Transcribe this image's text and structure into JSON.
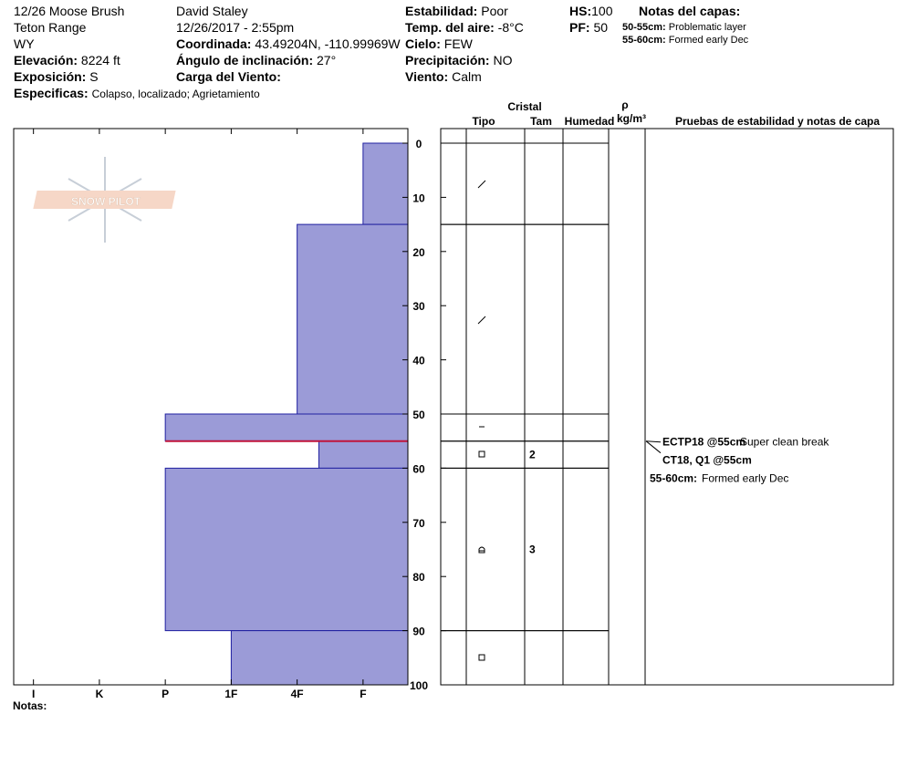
{
  "header": {
    "location": "12/26 Moose Brush",
    "range": "Teton Range",
    "state": "WY",
    "elevation_label": "Elevación:",
    "elevation": "8224 ft",
    "aspect_label": "Exposición:",
    "aspect": "S",
    "specifics_label": "Especificas:",
    "specifics": "Colapso, localizado; Agrietamiento",
    "observer": "David Staley",
    "datetime": "12/26/2017 - 2:55pm",
    "coord_label": "Coordinada:",
    "coord": "43.49204N, -110.99969W",
    "slope_label": "Ángulo de inclinación:",
    "slope": "27°",
    "wind_load_label": "Carga del Viento:",
    "stability_label": "Estabilidad:",
    "stability": "Poor",
    "air_temp_label": "Temp. del aire:",
    "air_temp": "-8°C",
    "sky_label": "Cielo:",
    "sky": "FEW",
    "precip_label": "Precipitación:",
    "precip": "NO",
    "wind_label": "Viento:",
    "wind": "Calm",
    "hs_label": "HS:",
    "hs": 100,
    "pf_label": "PF:",
    "pf": 50,
    "layer_notes_label": "Notas del capas:",
    "layer_notes": [
      {
        "range": "50-55cm:",
        "text": "Problematic layer"
      },
      {
        "range": "55-60cm:",
        "text": "Formed early Dec"
      }
    ]
  },
  "chart_data": {
    "type": "hardness-profile",
    "color": "#9b9bd7",
    "critical_color": "#c0143c",
    "critical_depth": 55,
    "layers": [
      {
        "top": 0,
        "bottom": 15,
        "hardness": 1
      },
      {
        "top": 15,
        "bottom": 50,
        "hardness": 2
      },
      {
        "top": 50,
        "bottom": 55,
        "hardness": 4
      },
      {
        "top": 55,
        "bottom": 60,
        "hardness": 1.67,
        "grain_size": 2
      },
      {
        "top": 60,
        "bottom": 90,
        "hardness": 4,
        "grain_size": 3
      },
      {
        "top": 90,
        "bottom": 100,
        "hardness": 3
      }
    ],
    "xlim": [
      6.3,
      0.32
    ],
    "xticks": [
      {
        "value": 6,
        "label": "I"
      },
      {
        "value": 5,
        "label": "K"
      },
      {
        "value": 4,
        "label": "P"
      },
      {
        "value": 3,
        "label": "1F"
      },
      {
        "value": 2,
        "label": "4F"
      },
      {
        "value": 1,
        "label": "F"
      }
    ],
    "ylim": [
      0,
      100
    ],
    "yticks": [
      0,
      10,
      20,
      30,
      40,
      50,
      60,
      70,
      80,
      90,
      100
    ],
    "columns": {
      "crystal": "Cristal",
      "type": "Tipo",
      "size": "Tam",
      "moisture": "Humedad",
      "rho": "ρ",
      "density_unit": "kg/m³",
      "tests": "Pruebas de estabilidad y notas de capa"
    },
    "tests": [
      {
        "name": "ECTP18 @55cm",
        "note": "Super clean break"
      },
      {
        "name": "CT18, Q1 @55cm"
      }
    ],
    "layer_note": {
      "range": "55-60cm:",
      "text": "Formed early Dec"
    },
    "notes_label": "Notas:"
  }
}
